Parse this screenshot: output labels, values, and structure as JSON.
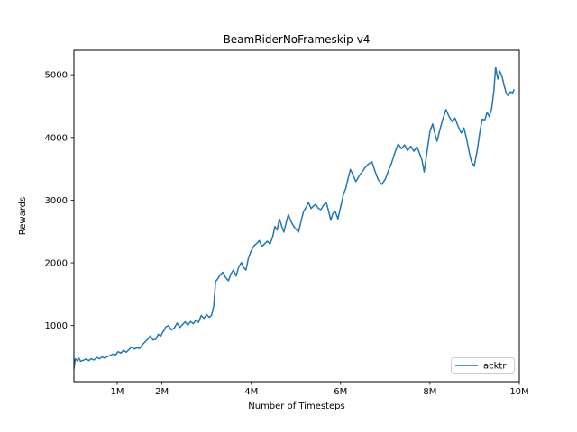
{
  "figure": {
    "background": "#ffffff"
  },
  "chart_data": {
    "type": "line",
    "title": "BeamRiderNoFrameskip-v4",
    "xlabel": "Number of Timesteps",
    "ylabel": "Rewards",
    "grid": false,
    "x_unit": "millions of timesteps",
    "xlim_millions": [
      0.03,
      10.0
    ],
    "ylim": [
      105,
      5390
    ],
    "x_ticks": [
      {
        "value": 1,
        "label": "1M"
      },
      {
        "value": 2,
        "label": "2M"
      },
      {
        "value": 4,
        "label": "4M"
      },
      {
        "value": 6,
        "label": "6M"
      },
      {
        "value": 8,
        "label": "8M"
      },
      {
        "value": 10,
        "label": "10M"
      }
    ],
    "y_ticks": [
      {
        "value": 1000,
        "label": "1000"
      },
      {
        "value": 2000,
        "label": "2000"
      },
      {
        "value": 3000,
        "label": "3000"
      },
      {
        "value": 4000,
        "label": "4000"
      },
      {
        "value": 5000,
        "label": "5000"
      }
    ],
    "legend": {
      "position": "lower right",
      "entries": [
        {
          "label": "acktr",
          "color": "#1f77b4"
        }
      ]
    },
    "series": [
      {
        "name": "acktr",
        "color": "#1f77b4",
        "points": [
          [
            0.03,
            310
          ],
          [
            0.06,
            470
          ],
          [
            0.1,
            440
          ],
          [
            0.14,
            480
          ],
          [
            0.18,
            430
          ],
          [
            0.24,
            445
          ],
          [
            0.3,
            465
          ],
          [
            0.36,
            440
          ],
          [
            0.42,
            470
          ],
          [
            0.48,
            450
          ],
          [
            0.54,
            490
          ],
          [
            0.6,
            470
          ],
          [
            0.66,
            500
          ],
          [
            0.72,
            480
          ],
          [
            0.78,
            505
          ],
          [
            0.84,
            520
          ],
          [
            0.9,
            545
          ],
          [
            0.96,
            530
          ],
          [
            1.02,
            585
          ],
          [
            1.08,
            560
          ],
          [
            1.14,
            605
          ],
          [
            1.2,
            575
          ],
          [
            1.26,
            615
          ],
          [
            1.32,
            655
          ],
          [
            1.38,
            625
          ],
          [
            1.44,
            645
          ],
          [
            1.5,
            635
          ],
          [
            1.56,
            690
          ],
          [
            1.62,
            740
          ],
          [
            1.68,
            780
          ],
          [
            1.74,
            835
          ],
          [
            1.8,
            770
          ],
          [
            1.86,
            780
          ],
          [
            1.92,
            860
          ],
          [
            1.97,
            830
          ],
          [
            2.03,
            905
          ],
          [
            2.09,
            980
          ],
          [
            2.15,
            1000
          ],
          [
            2.21,
            930
          ],
          [
            2.28,
            965
          ],
          [
            2.34,
            1040
          ],
          [
            2.4,
            970
          ],
          [
            2.46,
            1015
          ],
          [
            2.52,
            1060
          ],
          [
            2.58,
            1005
          ],
          [
            2.64,
            1065
          ],
          [
            2.7,
            1030
          ],
          [
            2.76,
            1085
          ],
          [
            2.82,
            1050
          ],
          [
            2.88,
            1160
          ],
          [
            2.94,
            1115
          ],
          [
            3.0,
            1175
          ],
          [
            3.06,
            1130
          ],
          [
            3.11,
            1160
          ],
          [
            3.16,
            1310
          ],
          [
            3.2,
            1700
          ],
          [
            3.25,
            1745
          ],
          [
            3.31,
            1815
          ],
          [
            3.37,
            1850
          ],
          [
            3.43,
            1760
          ],
          [
            3.49,
            1715
          ],
          [
            3.55,
            1830
          ],
          [
            3.6,
            1885
          ],
          [
            3.66,
            1790
          ],
          [
            3.72,
            1935
          ],
          [
            3.78,
            2005
          ],
          [
            3.83,
            1925
          ],
          [
            3.88,
            1885
          ],
          [
            3.94,
            2085
          ],
          [
            4.0,
            2195
          ],
          [
            4.06,
            2270
          ],
          [
            4.12,
            2310
          ],
          [
            4.18,
            2355
          ],
          [
            4.24,
            2260
          ],
          [
            4.3,
            2305
          ],
          [
            4.36,
            2345
          ],
          [
            4.42,
            2300
          ],
          [
            4.48,
            2420
          ],
          [
            4.53,
            2580
          ],
          [
            4.58,
            2520
          ],
          [
            4.63,
            2700
          ],
          [
            4.68,
            2590
          ],
          [
            4.73,
            2490
          ],
          [
            4.78,
            2640
          ],
          [
            4.83,
            2770
          ],
          [
            4.89,
            2660
          ],
          [
            4.95,
            2580
          ],
          [
            5.01,
            2530
          ],
          [
            5.06,
            2490
          ],
          [
            5.12,
            2680
          ],
          [
            5.17,
            2820
          ],
          [
            5.23,
            2890
          ],
          [
            5.28,
            2965
          ],
          [
            5.34,
            2865
          ],
          [
            5.39,
            2905
          ],
          [
            5.44,
            2935
          ],
          [
            5.5,
            2870
          ],
          [
            5.56,
            2850
          ],
          [
            5.62,
            2920
          ],
          [
            5.68,
            2965
          ],
          [
            5.73,
            2830
          ],
          [
            5.78,
            2680
          ],
          [
            5.83,
            2790
          ],
          [
            5.88,
            2820
          ],
          [
            5.94,
            2700
          ],
          [
            6.0,
            2890
          ],
          [
            6.06,
            3080
          ],
          [
            6.12,
            3200
          ],
          [
            6.17,
            3350
          ],
          [
            6.22,
            3490
          ],
          [
            6.28,
            3400
          ],
          [
            6.34,
            3295
          ],
          [
            6.41,
            3380
          ],
          [
            6.48,
            3450
          ],
          [
            6.55,
            3520
          ],
          [
            6.62,
            3575
          ],
          [
            6.7,
            3610
          ],
          [
            6.77,
            3460
          ],
          [
            6.84,
            3330
          ],
          [
            6.92,
            3250
          ],
          [
            7.0,
            3335
          ],
          [
            7.07,
            3470
          ],
          [
            7.14,
            3590
          ],
          [
            7.22,
            3770
          ],
          [
            7.29,
            3895
          ],
          [
            7.36,
            3820
          ],
          [
            7.43,
            3880
          ],
          [
            7.5,
            3790
          ],
          [
            7.57,
            3860
          ],
          [
            7.64,
            3780
          ],
          [
            7.71,
            3850
          ],
          [
            7.77,
            3740
          ],
          [
            7.82,
            3640
          ],
          [
            7.87,
            3450
          ],
          [
            7.93,
            3750
          ],
          [
            8.0,
            4100
          ],
          [
            8.06,
            4215
          ],
          [
            8.11,
            4060
          ],
          [
            8.16,
            3940
          ],
          [
            8.22,
            4120
          ],
          [
            8.29,
            4300
          ],
          [
            8.36,
            4445
          ],
          [
            8.43,
            4330
          ],
          [
            8.5,
            4250
          ],
          [
            8.56,
            4310
          ],
          [
            8.63,
            4180
          ],
          [
            8.7,
            4070
          ],
          [
            8.76,
            4150
          ],
          [
            8.82,
            3980
          ],
          [
            8.88,
            3760
          ],
          [
            8.93,
            3610
          ],
          [
            8.99,
            3540
          ],
          [
            9.06,
            3800
          ],
          [
            9.12,
            4100
          ],
          [
            9.17,
            4290
          ],
          [
            9.23,
            4280
          ],
          [
            9.28,
            4400
          ],
          [
            9.33,
            4330
          ],
          [
            9.38,
            4460
          ],
          [
            9.43,
            4750
          ],
          [
            9.47,
            5120
          ],
          [
            9.52,
            4930
          ],
          [
            9.56,
            5060
          ],
          [
            9.61,
            4980
          ],
          [
            9.66,
            4830
          ],
          [
            9.71,
            4700
          ],
          [
            9.75,
            4660
          ],
          [
            9.8,
            4730
          ],
          [
            9.85,
            4710
          ],
          [
            9.88,
            4760
          ]
        ]
      }
    ]
  },
  "colors": {
    "line": "#1f77b4",
    "text": "#000000",
    "spine": "#000000",
    "legend_border": "#cccccc",
    "background": "#ffffff"
  }
}
